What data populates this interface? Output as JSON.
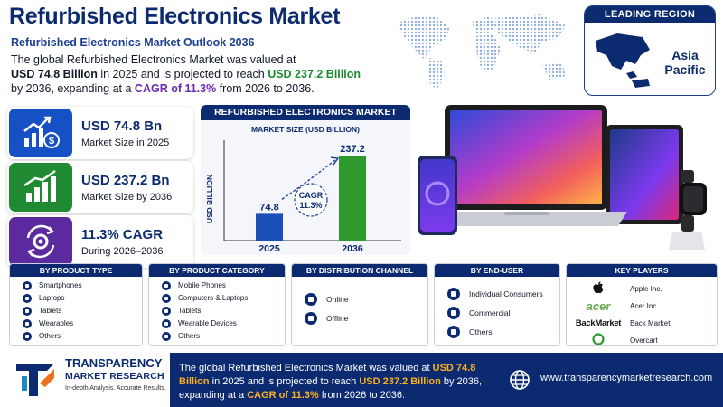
{
  "header": {
    "title": "Refurbished Electronics Market",
    "subtitle": "Refurbished Electronics Market Outlook 2036",
    "intro": {
      "p1": "The global Refurbished Electronics Market was valued at",
      "v1": "USD 74.8 Billion",
      "p2": " in 2025 and is projected to reach ",
      "v2": "USD 237.2 Billion",
      "p3": " by 2036, expanding at a ",
      "v3": "CAGR of 11.3%",
      "p4": " from 2026 to 2036."
    }
  },
  "leading_region": {
    "heading": "LEADING REGION",
    "name": "Asia Pacific"
  },
  "stats": [
    {
      "value": "USD 74.8 Bn",
      "label": "Market Size in 2025",
      "icon": "money-growth-icon",
      "color": "#1550c4"
    },
    {
      "value": "USD 237.2 Bn",
      "label": "Market Size by 2036",
      "icon": "bar-growth-icon",
      "color": "#1f8a32"
    },
    {
      "value": "11.3% CAGR",
      "label": "During 2026–2036",
      "icon": "gear-cycle-icon",
      "color": "#5b2a9e"
    }
  ],
  "chart_data": {
    "type": "bar",
    "title": "REFURBISHED ELECTRONICS MARKET",
    "subtitle": "MARKET SIZE (USD BILLION)",
    "ylabel": "USD BILLION",
    "xlabel": "",
    "categories": [
      "2025",
      "2036"
    ],
    "values": [
      74.8,
      237.2
    ],
    "value_labels": [
      "74.8",
      "237.2"
    ],
    "colors": [
      "#1a4fb8",
      "#2e9a2e"
    ],
    "ylim": [
      0,
      260
    ],
    "annotation": {
      "line1": "CAGR",
      "line2": "11.3%"
    }
  },
  "segments": {
    "product_type": {
      "heading": "BY PRODUCT TYPE",
      "items": [
        "Smartphones",
        "Laptops",
        "Tablets",
        "Wearables",
        "Others"
      ]
    },
    "product_category": {
      "heading": "BY PRODUCT CATEGORY",
      "items": [
        "Mobile Phones",
        "Computers & Laptops",
        "Tablets",
        "Wearable Devices",
        "Others"
      ]
    },
    "distribution_channel": {
      "heading": "BY DISTRIBUTION CHANNEL",
      "items": [
        "Online",
        "Offline"
      ]
    },
    "end_user": {
      "heading": "BY END-USER",
      "items": [
        "Individual Consumers",
        "Commercial",
        "Others"
      ]
    },
    "key_players": {
      "heading": "KEY PLAYERS",
      "items": [
        {
          "logo": "",
          "name": "Apple Inc.",
          "icon": "apple-logo-icon"
        },
        {
          "logo": "acer",
          "name": "Acer Inc.",
          "icon": "acer-logo-icon"
        },
        {
          "logo": "BackMarket",
          "name": "Back Market",
          "icon": "backmarket-logo-icon"
        },
        {
          "logo": "",
          "name": "Overcart",
          "icon": "overcart-logo-icon"
        }
      ]
    }
  },
  "footer": {
    "logo_line1": "TRANSPARENCY",
    "logo_line2": "MARKET RESEARCH",
    "tagline": "In-depth Analysis. Accurate Results.",
    "summary": {
      "p1": "The global Refurbished Electronics Market was valued at ",
      "v1": "USD 74.8 Billion",
      "p2": " in 2025 and is projected to reach ",
      "v2": "USD 237.2 Billion",
      "p3": " by 2036, expanding at a ",
      "v3": "CAGR of 11.3%",
      "p4": " from 2026 to 2036."
    },
    "url": "www.transparencymarketresearch.com"
  }
}
